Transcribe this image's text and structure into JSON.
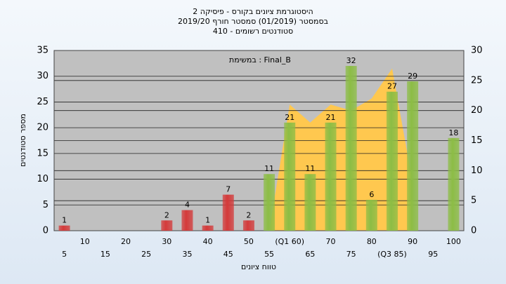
{
  "chart_data": {
    "type": "bar",
    "title": [
      "היסטוגרמת ציונים בקורס - פיסיקה 2",
      "בסמסטר  (01/2019)  סמסטר חורף 2019/20",
      "סטודנטים רשומים - 410"
    ],
    "annotation": "במשימת : Final_B",
    "y_label": "מספר סטודנטים",
    "x_label": "טווח ציונים",
    "categories": [
      "5",
      "10",
      "15",
      "20",
      "25",
      "30",
      "35",
      "40",
      "45",
      "50",
      "55",
      "(Q1 60)",
      "65",
      "70",
      "75",
      "80",
      "(Q3 85)",
      "90",
      "95",
      "100"
    ],
    "series": [
      {
        "colors": [
          "#d43a3a",
          "#d43a3a",
          "#d43a3a",
          "#d43a3a",
          "#d43a3a",
          "#d43a3a",
          "#d43a3a",
          "#d43a3a",
          "#d43a3a",
          "#d43a3a",
          "#8cbd45",
          "#8cbd45",
          "#8cbd45",
          "#8cbd45",
          "#8cbd45",
          "#8cbd45",
          "#8cbd45",
          "#8cbd45",
          "#8cbd45",
          "#8cbd45"
        ],
        "values": [
          1,
          0,
          0,
          0,
          0,
          2,
          4,
          1,
          7,
          2,
          11,
          21,
          11,
          21,
          32,
          6,
          27,
          29,
          0,
          18
        ]
      },
      {
        "type": "area",
        "axis": "y2",
        "color": "#ffc84f",
        "values": [
          null,
          null,
          null,
          null,
          null,
          null,
          null,
          null,
          null,
          null,
          0,
          21,
          18,
          21,
          20,
          22,
          27,
          8,
          null,
          null
        ]
      }
    ],
    "ylim": [
      0,
      35
    ],
    "yticks": [
      0,
      5,
      10,
      15,
      20,
      25,
      30,
      35
    ],
    "y2lim": [
      0,
      30
    ],
    "y2ticks": [
      0,
      5,
      10,
      15,
      20,
      25,
      30
    ],
    "grid": true
  }
}
